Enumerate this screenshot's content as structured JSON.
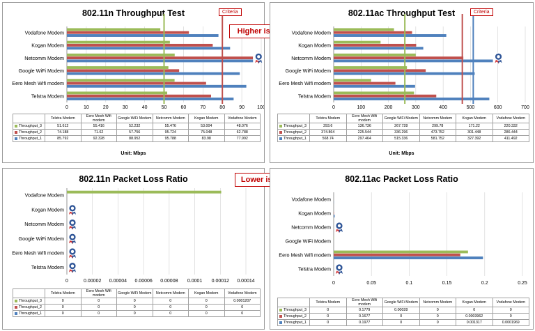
{
  "panels": [
    {
      "title": "802.11n Throughput  Test",
      "unit_label": "Unit: Mbps",
      "annotation": "Higher is better",
      "criteria_label": "Criteria",
      "chart_data": {
        "type": "bar",
        "orientation": "horizontal",
        "categories": [
          "Telstra Modem",
          "Eero Mesh Wifi modem",
          "Google WiFi Modem",
          "Netcomm Modem",
          "Kogan Modem",
          "Vodafone Modem"
        ],
        "series": [
          {
            "name": "Throughput_3",
            "color": "#9bbb59",
            "values": [
              51.612,
              55.416,
              52.232,
              55.476,
              53.004,
              48.076
            ]
          },
          {
            "name": "Throughput_2",
            "color": "#c0504d",
            "values": [
              74.188,
              71.62,
              57.756,
              95.724,
              75.048,
              62.788
            ]
          },
          {
            "name": "Throughput_1",
            "color": "#4f81bd",
            "values": [
              85.792,
              92.328,
              88.952,
              95.788,
              83.98,
              77.992
            ]
          }
        ],
        "xlim": [
          0,
          100
        ],
        "xticks": [
          "0",
          "10",
          "20",
          "30",
          "40",
          "50",
          "60",
          "70",
          "80",
          "90",
          "100"
        ],
        "reference_lines": [
          {
            "value": 50,
            "color": "#9bbb59"
          },
          {
            "value": 80,
            "color": "#c0504d"
          }
        ],
        "award_icon_categories": [
          "Netcomm Modem"
        ],
        "table_header": [
          "Telstra Modem",
          "Eero Mesh Wifi modem",
          "Google WiFi Modem",
          "Netcomm Modem",
          "Kogan Modem",
          "Vodafone Modem"
        ],
        "table_rows": [
          {
            "name": "Throughput_3",
            "color": "#9bbb59",
            "values": [
              "51.612",
              "55.416",
              "52.232",
              "55.476",
              "53.004",
              "48.076"
            ]
          },
          {
            "name": "Throughput_2",
            "color": "#c0504d",
            "values": [
              "74.188",
              "71.62",
              "57.756",
              "95.724",
              "75.048",
              "62.788"
            ]
          },
          {
            "name": "Throughput_1",
            "color": "#4f81bd",
            "values": [
              "85.792",
              "92.328",
              "88.952",
              "95.788",
              "83.98",
              "77.992"
            ]
          }
        ]
      }
    },
    {
      "title": "802.11ac Throughput  Test",
      "unit_label": "Unit: Mbps",
      "criteria_label": "Criteria",
      "chart_data": {
        "type": "bar",
        "orientation": "horizontal",
        "categories": [
          "Telstra Modem",
          "Eero Mesh Wifi modem",
          "Google WiFi Modem",
          "Netcomm Modem",
          "Kogan Modem",
          "Vodafone Modem"
        ],
        "series": [
          {
            "name": "Throughput_3",
            "color": "#9bbb59",
            "values": [
              293.6,
              136.736,
              267.728,
              299.78,
              171.22,
              220.332
            ]
          },
          {
            "name": "Throughput_2",
            "color": "#c0504d",
            "values": [
              374.864,
              225.544,
              336.296,
              473.752,
              301.448,
              286.444
            ]
          },
          {
            "name": "Throughput_1",
            "color": "#4f81bd",
            "values": [
              568.74,
              297.464,
              515.336,
              581.752,
              327.392,
              411.492
            ]
          }
        ],
        "xlim": [
          0,
          700
        ],
        "xticks": [
          "0",
          "100",
          "200",
          "300",
          "400",
          "500",
          "600",
          "700"
        ],
        "reference_lines": [
          {
            "value": 260,
            "color": "#9bbb59"
          },
          {
            "value": 470,
            "color": "#c0504d"
          },
          {
            "value": 510,
            "color": "#4f81bd"
          }
        ],
        "award_icon_categories": [
          "Netcomm Modem"
        ],
        "table_header": [
          "Telstra Modem",
          "Eero Mesh Wifi modem",
          "Google WiFi Modem",
          "Netcomm Modem",
          "Kogan Modem",
          "Vodafone Modem"
        ],
        "table_rows": [
          {
            "name": "Throughput_3",
            "color": "#9bbb59",
            "values": [
              "293.6",
              "136.736",
              "267.728",
              "299.78",
              "171.22",
              "220.332"
            ]
          },
          {
            "name": "Throughput_2",
            "color": "#c0504d",
            "values": [
              "374.864",
              "225.544",
              "336.296",
              "473.752",
              "301.448",
              "286.444"
            ]
          },
          {
            "name": "Throughput_1",
            "color": "#4f81bd",
            "values": [
              "568.74",
              "297.464",
              "515.336",
              "581.752",
              "327.392",
              "411.492"
            ]
          }
        ]
      }
    },
    {
      "title": "802.11n Packet Loss Ratio",
      "annotation": "Lower is better",
      "chart_data": {
        "type": "bar",
        "orientation": "horizontal",
        "categories": [
          "Telstra Modem",
          "Eero Mesh Wifi modem",
          "Google WiFi Modem",
          "Netcomm Modem",
          "Kogan Modem",
          "Vodafone Modem"
        ],
        "series": [
          {
            "name": "Throughput_3",
            "color": "#9bbb59",
            "values": [
              0,
              0,
              0,
              0,
              0,
              0.0001207
            ]
          },
          {
            "name": "Throughput_2",
            "color": "#c0504d",
            "values": [
              0,
              0,
              0,
              0,
              0,
              0
            ]
          },
          {
            "name": "Throughput_1",
            "color": "#4f81bd",
            "values": [
              0,
              0,
              0,
              0,
              0,
              0
            ]
          }
        ],
        "xlim": [
          0,
          0.00014
        ],
        "xticks": [
          "0",
          "0.00002",
          "0.00004",
          "0.00006",
          "0.00008",
          "0.0001",
          "0.00012",
          "0.00014"
        ],
        "reference_lines": [],
        "award_icon_categories": [
          "Telstra Modem",
          "Eero Mesh Wifi modem",
          "Google WiFi Modem",
          "Netcomm Modem",
          "Kogan Modem"
        ],
        "table_header": [
          "Telstra Modem",
          "Eero Mesh Wifi modem",
          "Google WiFi Modem",
          "Netcomm Modem",
          "Kogan Modem",
          "Vodafone Modem"
        ],
        "table_rows": [
          {
            "name": "Throughput_3",
            "color": "#9bbb59",
            "values": [
              "0",
              "0",
              "0",
              "0",
              "0",
              "0.0001207"
            ]
          },
          {
            "name": "Throughput_2",
            "color": "#c0504d",
            "values": [
              "0",
              "0",
              "0",
              "0",
              "0",
              "0"
            ]
          },
          {
            "name": "Throughput_1",
            "color": "#4f81bd",
            "values": [
              "0",
              "0",
              "0",
              "0",
              "0",
              "0"
            ]
          }
        ]
      }
    },
    {
      "title": "802.11ac Packet Loss Ratio",
      "chart_data": {
        "type": "bar",
        "orientation": "horizontal",
        "categories": [
          "Telstra Modem",
          "Eero Mesh Wifi modem",
          "Google WiFi Modem",
          "Netcomm Modem",
          "Kogan Modem",
          "Vodafone Modem"
        ],
        "series": [
          {
            "name": "Throughput_3",
            "color": "#9bbb59",
            "values": [
              0,
              0.1779,
              0.00028,
              0,
              0,
              0
            ]
          },
          {
            "name": "Throughput_2",
            "color": "#c0504d",
            "values": [
              0,
              0.1677,
              0,
              0,
              0.0003962,
              0
            ]
          },
          {
            "name": "Throughput_1",
            "color": "#4f81bd",
            "values": [
              0,
              0.1977,
              0,
              0,
              0.001317,
              0.0001969
            ]
          }
        ],
        "xlim": [
          0,
          0.25
        ],
        "xticks": [
          "0",
          "0.05",
          "0.1",
          "0.15",
          "0.2",
          "0.25"
        ],
        "reference_lines": [],
        "award_icon_categories": [
          "Telstra Modem",
          "Netcomm Modem"
        ],
        "table_header": [
          "Telstra Modem",
          "Eero Mesh Wifi modem",
          "Google WiFi Modem",
          "Netcomm Modem",
          "Kogan Modem",
          "Vodafone Modem"
        ],
        "table_rows": [
          {
            "name": "Throughput_3",
            "color": "#9bbb59",
            "values": [
              "0",
              "0.1779",
              "0.00028",
              "0",
              "0",
              "0"
            ]
          },
          {
            "name": "Throughput_2",
            "color": "#c0504d",
            "values": [
              "0",
              "0.1677",
              "0",
              "0",
              "0.0003962",
              "0"
            ]
          },
          {
            "name": "Throughput_1",
            "color": "#4f81bd",
            "values": [
              "0",
              "0.1977",
              "0",
              "0",
              "0.001317",
              "0.0001969"
            ]
          }
        ]
      }
    }
  ]
}
